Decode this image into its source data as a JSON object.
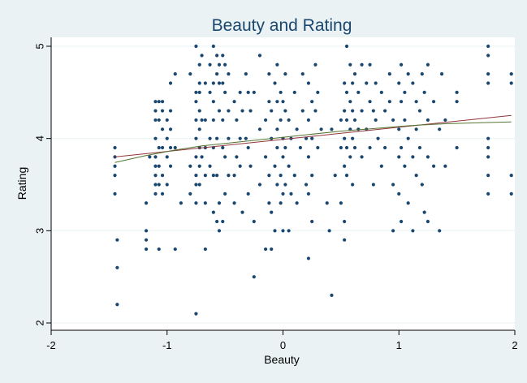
{
  "chart_data": {
    "type": "scatter",
    "title": "Beauty and Rating",
    "xlabel": "Beauty",
    "ylabel": "Rating",
    "xlim": [
      -2,
      2
    ],
    "ylim": [
      2,
      5
    ],
    "x_ticks": [
      -2,
      -1,
      0,
      1,
      2
    ],
    "y_ticks": [
      2,
      3,
      4,
      5
    ],
    "x_tick_labels": [
      "-2",
      "-1",
      "0",
      "1",
      "2"
    ],
    "y_tick_labels": [
      "2",
      "3",
      "4",
      "5"
    ],
    "grid": "horizontal",
    "legend": "none",
    "series": [
      {
        "type": "scatter",
        "color": "#1a476f",
        "points": [
          [
            -1.45,
            3.9
          ],
          [
            -1.45,
            3.8
          ],
          [
            -1.45,
            3.7
          ],
          [
            -1.45,
            3.6
          ],
          [
            -1.45,
            3.4
          ],
          [
            -1.43,
            2.9
          ],
          [
            -1.43,
            2.6
          ],
          [
            -1.43,
            2.2
          ],
          [
            -1.18,
            3.3
          ],
          [
            -1.18,
            3.0
          ],
          [
            -1.18,
            2.9
          ],
          [
            -1.18,
            2.8
          ],
          [
            -1.15,
            3.8
          ],
          [
            -1.1,
            4.4
          ],
          [
            -1.1,
            4.3
          ],
          [
            -1.1,
            4.2
          ],
          [
            -1.1,
            4.0
          ],
          [
            -1.1,
            3.8
          ],
          [
            -1.1,
            3.7
          ],
          [
            -1.1,
            3.6
          ],
          [
            -1.1,
            3.5
          ],
          [
            -1.1,
            3.4
          ],
          [
            -1.07,
            4.4
          ],
          [
            -1.07,
            4.2
          ],
          [
            -1.07,
            3.9
          ],
          [
            -1.07,
            3.7
          ],
          [
            -1.07,
            3.5
          ],
          [
            -1.07,
            2.8
          ],
          [
            -1.04,
            4.4
          ],
          [
            -1.04,
            4.3
          ],
          [
            -1.04,
            4.1
          ],
          [
            -1.04,
            3.9
          ],
          [
            -1.04,
            3.6
          ],
          [
            -1.04,
            3.4
          ],
          [
            -1.0,
            4.2
          ],
          [
            -1.0,
            4.0
          ],
          [
            -1.0,
            3.8
          ],
          [
            -1.0,
            3.5
          ],
          [
            -0.97,
            4.6
          ],
          [
            -0.97,
            4.3
          ],
          [
            -0.97,
            4.1
          ],
          [
            -0.97,
            3.9
          ],
          [
            -0.97,
            3.7
          ],
          [
            -0.93,
            4.7
          ],
          [
            -0.93,
            3.9
          ],
          [
            -0.93,
            2.8
          ],
          [
            -0.88,
            3.3
          ],
          [
            -0.8,
            4.7
          ],
          [
            -0.8,
            3.7
          ],
          [
            -0.8,
            3.4
          ],
          [
            -0.75,
            5.0
          ],
          [
            -0.75,
            4.5
          ],
          [
            -0.75,
            4.4
          ],
          [
            -0.75,
            4.2
          ],
          [
            -0.75,
            4.0
          ],
          [
            -0.75,
            3.8
          ],
          [
            -0.75,
            3.6
          ],
          [
            -0.75,
            3.5
          ],
          [
            -0.75,
            3.3
          ],
          [
            -0.75,
            2.1
          ],
          [
            -0.72,
            4.8
          ],
          [
            -0.72,
            4.6
          ],
          [
            -0.72,
            4.5
          ],
          [
            -0.72,
            4.3
          ],
          [
            -0.72,
            4.1
          ],
          [
            -0.72,
            3.9
          ],
          [
            -0.72,
            3.7
          ],
          [
            -0.72,
            3.5
          ],
          [
            -0.7,
            4.9
          ],
          [
            -0.7,
            4.2
          ],
          [
            -0.7,
            3.8
          ],
          [
            -0.67,
            4.6
          ],
          [
            -0.67,
            4.2
          ],
          [
            -0.67,
            3.9
          ],
          [
            -0.67,
            3.6
          ],
          [
            -0.67,
            3.3
          ],
          [
            -0.67,
            2.8
          ],
          [
            -0.63,
            4.8
          ],
          [
            -0.63,
            4.5
          ],
          [
            -0.63,
            4.0
          ],
          [
            -0.63,
            3.7
          ],
          [
            -0.6,
            5.0
          ],
          [
            -0.6,
            4.6
          ],
          [
            -0.6,
            4.4
          ],
          [
            -0.6,
            4.2
          ],
          [
            -0.6,
            3.9
          ],
          [
            -0.6,
            3.6
          ],
          [
            -0.6,
            3.2
          ],
          [
            -0.57,
            4.9
          ],
          [
            -0.57,
            4.7
          ],
          [
            -0.57,
            4.0
          ],
          [
            -0.57,
            3.6
          ],
          [
            -0.57,
            3.1
          ],
          [
            -0.55,
            4.8
          ],
          [
            -0.55,
            4.6
          ],
          [
            -0.55,
            4.3
          ],
          [
            -0.55,
            3.3
          ],
          [
            -0.55,
            3.0
          ],
          [
            -0.52,
            4.9
          ],
          [
            -0.52,
            4.6
          ],
          [
            -0.52,
            4.2
          ],
          [
            -0.52,
            3.9
          ],
          [
            -0.52,
            3.1
          ],
          [
            -0.5,
            4.8
          ],
          [
            -0.5,
            4.5
          ],
          [
            -0.5,
            3.8
          ],
          [
            -0.5,
            3.4
          ],
          [
            -0.47,
            4.7
          ],
          [
            -0.47,
            4.3
          ],
          [
            -0.47,
            4.0
          ],
          [
            -0.47,
            3.6
          ],
          [
            -0.42,
            4.4
          ],
          [
            -0.42,
            3.6
          ],
          [
            -0.42,
            3.3
          ],
          [
            -0.4,
            4.2
          ],
          [
            -0.4,
            3.8
          ],
          [
            -0.37,
            4.5
          ],
          [
            -0.37,
            4.0
          ],
          [
            -0.37,
            3.7
          ],
          [
            -0.35,
            4.3
          ],
          [
            -0.35,
            3.2
          ],
          [
            -0.32,
            4.7
          ],
          [
            -0.32,
            4.0
          ],
          [
            -0.3,
            4.5
          ],
          [
            -0.3,
            3.9
          ],
          [
            -0.3,
            3.4
          ],
          [
            -0.28,
            4.3
          ],
          [
            -0.28,
            3.7
          ],
          [
            -0.25,
            4.5
          ],
          [
            -0.25,
            3.1
          ],
          [
            -0.25,
            2.5
          ],
          [
            -0.2,
            4.9
          ],
          [
            -0.2,
            4.1
          ],
          [
            -0.2,
            3.5
          ],
          [
            -0.15,
            4.2
          ],
          [
            -0.15,
            3.8
          ],
          [
            -0.15,
            2.8
          ],
          [
            -0.12,
            4.7
          ],
          [
            -0.12,
            4.4
          ],
          [
            -0.12,
            3.6
          ],
          [
            -0.12,
            3.3
          ],
          [
            -0.1,
            4.3
          ],
          [
            -0.1,
            4.0
          ],
          [
            -0.1,
            3.2
          ],
          [
            -0.1,
            2.8
          ],
          [
            -0.07,
            4.6
          ],
          [
            -0.07,
            3.7
          ],
          [
            -0.07,
            3.0
          ],
          [
            -0.05,
            4.8
          ],
          [
            -0.05,
            4.4
          ],
          [
            -0.05,
            4.1
          ],
          [
            -0.05,
            3.9
          ],
          [
            -0.05,
            3.5
          ],
          [
            -0.02,
            4.5
          ],
          [
            -0.02,
            4.2
          ],
          [
            -0.02,
            3.6
          ],
          [
            -0.02,
            3.3
          ],
          [
            0.0,
            4.4
          ],
          [
            0.0,
            4.0
          ],
          [
            0.0,
            3.8
          ],
          [
            0.0,
            3.4
          ],
          [
            0.0,
            3.0
          ],
          [
            0.02,
            4.7
          ],
          [
            0.02,
            4.3
          ],
          [
            0.02,
            3.9
          ],
          [
            0.02,
            3.5
          ],
          [
            0.05,
            4.2
          ],
          [
            0.05,
            3.7
          ],
          [
            0.05,
            3.0
          ],
          [
            0.07,
            4.0
          ],
          [
            0.07,
            3.4
          ],
          [
            0.1,
            4.5
          ],
          [
            0.1,
            3.6
          ],
          [
            0.12,
            4.1
          ],
          [
            0.12,
            3.3
          ],
          [
            0.15,
            3.9
          ],
          [
            0.17,
            4.7
          ],
          [
            0.17,
            4.3
          ],
          [
            0.2,
            4.0
          ],
          [
            0.2,
            3.5
          ],
          [
            0.22,
            4.6
          ],
          [
            0.22,
            4.2
          ],
          [
            0.22,
            3.8
          ],
          [
            0.22,
            3.4
          ],
          [
            0.22,
            2.7
          ],
          [
            0.25,
            4.4
          ],
          [
            0.25,
            4.0
          ],
          [
            0.25,
            3.6
          ],
          [
            0.25,
            3.1
          ],
          [
            0.28,
            4.8
          ],
          [
            0.28,
            4.3
          ],
          [
            0.3,
            4.5
          ],
          [
            0.3,
            3.9
          ],
          [
            0.33,
            4.1
          ],
          [
            0.38,
            3.3
          ],
          [
            0.4,
            3.0
          ],
          [
            0.42,
            4.1
          ],
          [
            0.42,
            2.3
          ],
          [
            0.45,
            3.6
          ],
          [
            0.5,
            4.2
          ],
          [
            0.5,
            3.9
          ],
          [
            0.5,
            3.3
          ],
          [
            0.53,
            4.6
          ],
          [
            0.53,
            4.3
          ],
          [
            0.53,
            4.0
          ],
          [
            0.53,
            3.7
          ],
          [
            0.53,
            3.1
          ],
          [
            0.53,
            2.9
          ],
          [
            0.55,
            5.0
          ],
          [
            0.55,
            4.5
          ],
          [
            0.55,
            4.2
          ],
          [
            0.55,
            3.9
          ],
          [
            0.55,
            3.6
          ],
          [
            0.58,
            4.8
          ],
          [
            0.58,
            4.4
          ],
          [
            0.58,
            4.1
          ],
          [
            0.58,
            3.8
          ],
          [
            0.6,
            4.6
          ],
          [
            0.6,
            4.3
          ],
          [
            0.6,
            4.0
          ],
          [
            0.6,
            3.5
          ],
          [
            0.62,
            4.7
          ],
          [
            0.62,
            4.2
          ],
          [
            0.62,
            3.9
          ],
          [
            0.65,
            4.5
          ],
          [
            0.65,
            4.1
          ],
          [
            0.68,
            4.8
          ],
          [
            0.68,
            4.3
          ],
          [
            0.68,
            3.8
          ],
          [
            0.72,
            4.6
          ],
          [
            0.72,
            4.1
          ],
          [
            0.75,
            4.8
          ],
          [
            0.75,
            4.4
          ],
          [
            0.75,
            3.9
          ],
          [
            0.78,
            4.3
          ],
          [
            0.78,
            3.5
          ],
          [
            0.8,
            4.6
          ],
          [
            0.8,
            4.2
          ],
          [
            0.82,
            4.0
          ],
          [
            0.85,
            4.5
          ],
          [
            0.85,
            3.7
          ],
          [
            0.88,
            4.3
          ],
          [
            0.88,
            3.9
          ],
          [
            0.92,
            4.7
          ],
          [
            0.92,
            4.4
          ],
          [
            0.95,
            4.2
          ],
          [
            0.95,
            3.5
          ],
          [
            0.95,
            3.0
          ],
          [
            1.0,
            4.6
          ],
          [
            1.0,
            4.1
          ],
          [
            1.0,
            3.8
          ],
          [
            1.0,
            3.4
          ],
          [
            1.02,
            4.8
          ],
          [
            1.02,
            4.4
          ],
          [
            1.02,
            3.9
          ],
          [
            1.02,
            3.1
          ],
          [
            1.05,
            4.5
          ],
          [
            1.05,
            4.2
          ],
          [
            1.05,
            3.7
          ],
          [
            1.08,
            4.7
          ],
          [
            1.08,
            4.0
          ],
          [
            1.08,
            3.3
          ],
          [
            1.12,
            4.6
          ],
          [
            1.12,
            3.8
          ],
          [
            1.12,
            3.0
          ],
          [
            1.15,
            4.4
          ],
          [
            1.15,
            4.1
          ],
          [
            1.15,
            3.6
          ],
          [
            1.18,
            4.3
          ],
          [
            1.18,
            3.9
          ],
          [
            1.2,
            4.7
          ],
          [
            1.2,
            3.5
          ],
          [
            1.22,
            4.5
          ],
          [
            1.22,
            3.2
          ],
          [
            1.25,
            4.8
          ],
          [
            1.25,
            4.2
          ],
          [
            1.25,
            3.8
          ],
          [
            1.25,
            3.1
          ],
          [
            1.3,
            4.4
          ],
          [
            1.3,
            3.7
          ],
          [
            1.35,
            4.1
          ],
          [
            1.35,
            3.0
          ],
          [
            1.37,
            4.7
          ],
          [
            1.4,
            4.2
          ],
          [
            1.4,
            3.7
          ],
          [
            1.5,
            4.5
          ],
          [
            1.5,
            4.4
          ],
          [
            1.5,
            3.9
          ],
          [
            1.77,
            5.0
          ],
          [
            1.77,
            4.9
          ],
          [
            1.77,
            4.7
          ],
          [
            1.77,
            4.6
          ],
          [
            1.77,
            4.0
          ],
          [
            1.77,
            3.9
          ],
          [
            1.77,
            3.8
          ],
          [
            1.77,
            3.6
          ],
          [
            1.77,
            3.4
          ],
          [
            1.97,
            4.7
          ],
          [
            1.97,
            4.6
          ],
          [
            1.97,
            3.6
          ],
          [
            1.97,
            3.4
          ]
        ]
      },
      {
        "type": "line",
        "color": "#90353b",
        "x": [
          -1.45,
          1.97
        ],
        "y": [
          3.8,
          4.25
        ]
      },
      {
        "type": "line",
        "color": "#55752f",
        "x": [
          -1.45,
          -1.2,
          -0.95,
          -0.7,
          -0.4,
          -0.1,
          0.2,
          0.5,
          0.8,
          1.1,
          1.4,
          1.7,
          1.97
        ],
        "y": [
          3.74,
          3.81,
          3.87,
          3.92,
          3.96,
          4.0,
          4.04,
          4.08,
          4.11,
          4.14,
          4.16,
          4.17,
          4.18
        ]
      }
    ]
  }
}
